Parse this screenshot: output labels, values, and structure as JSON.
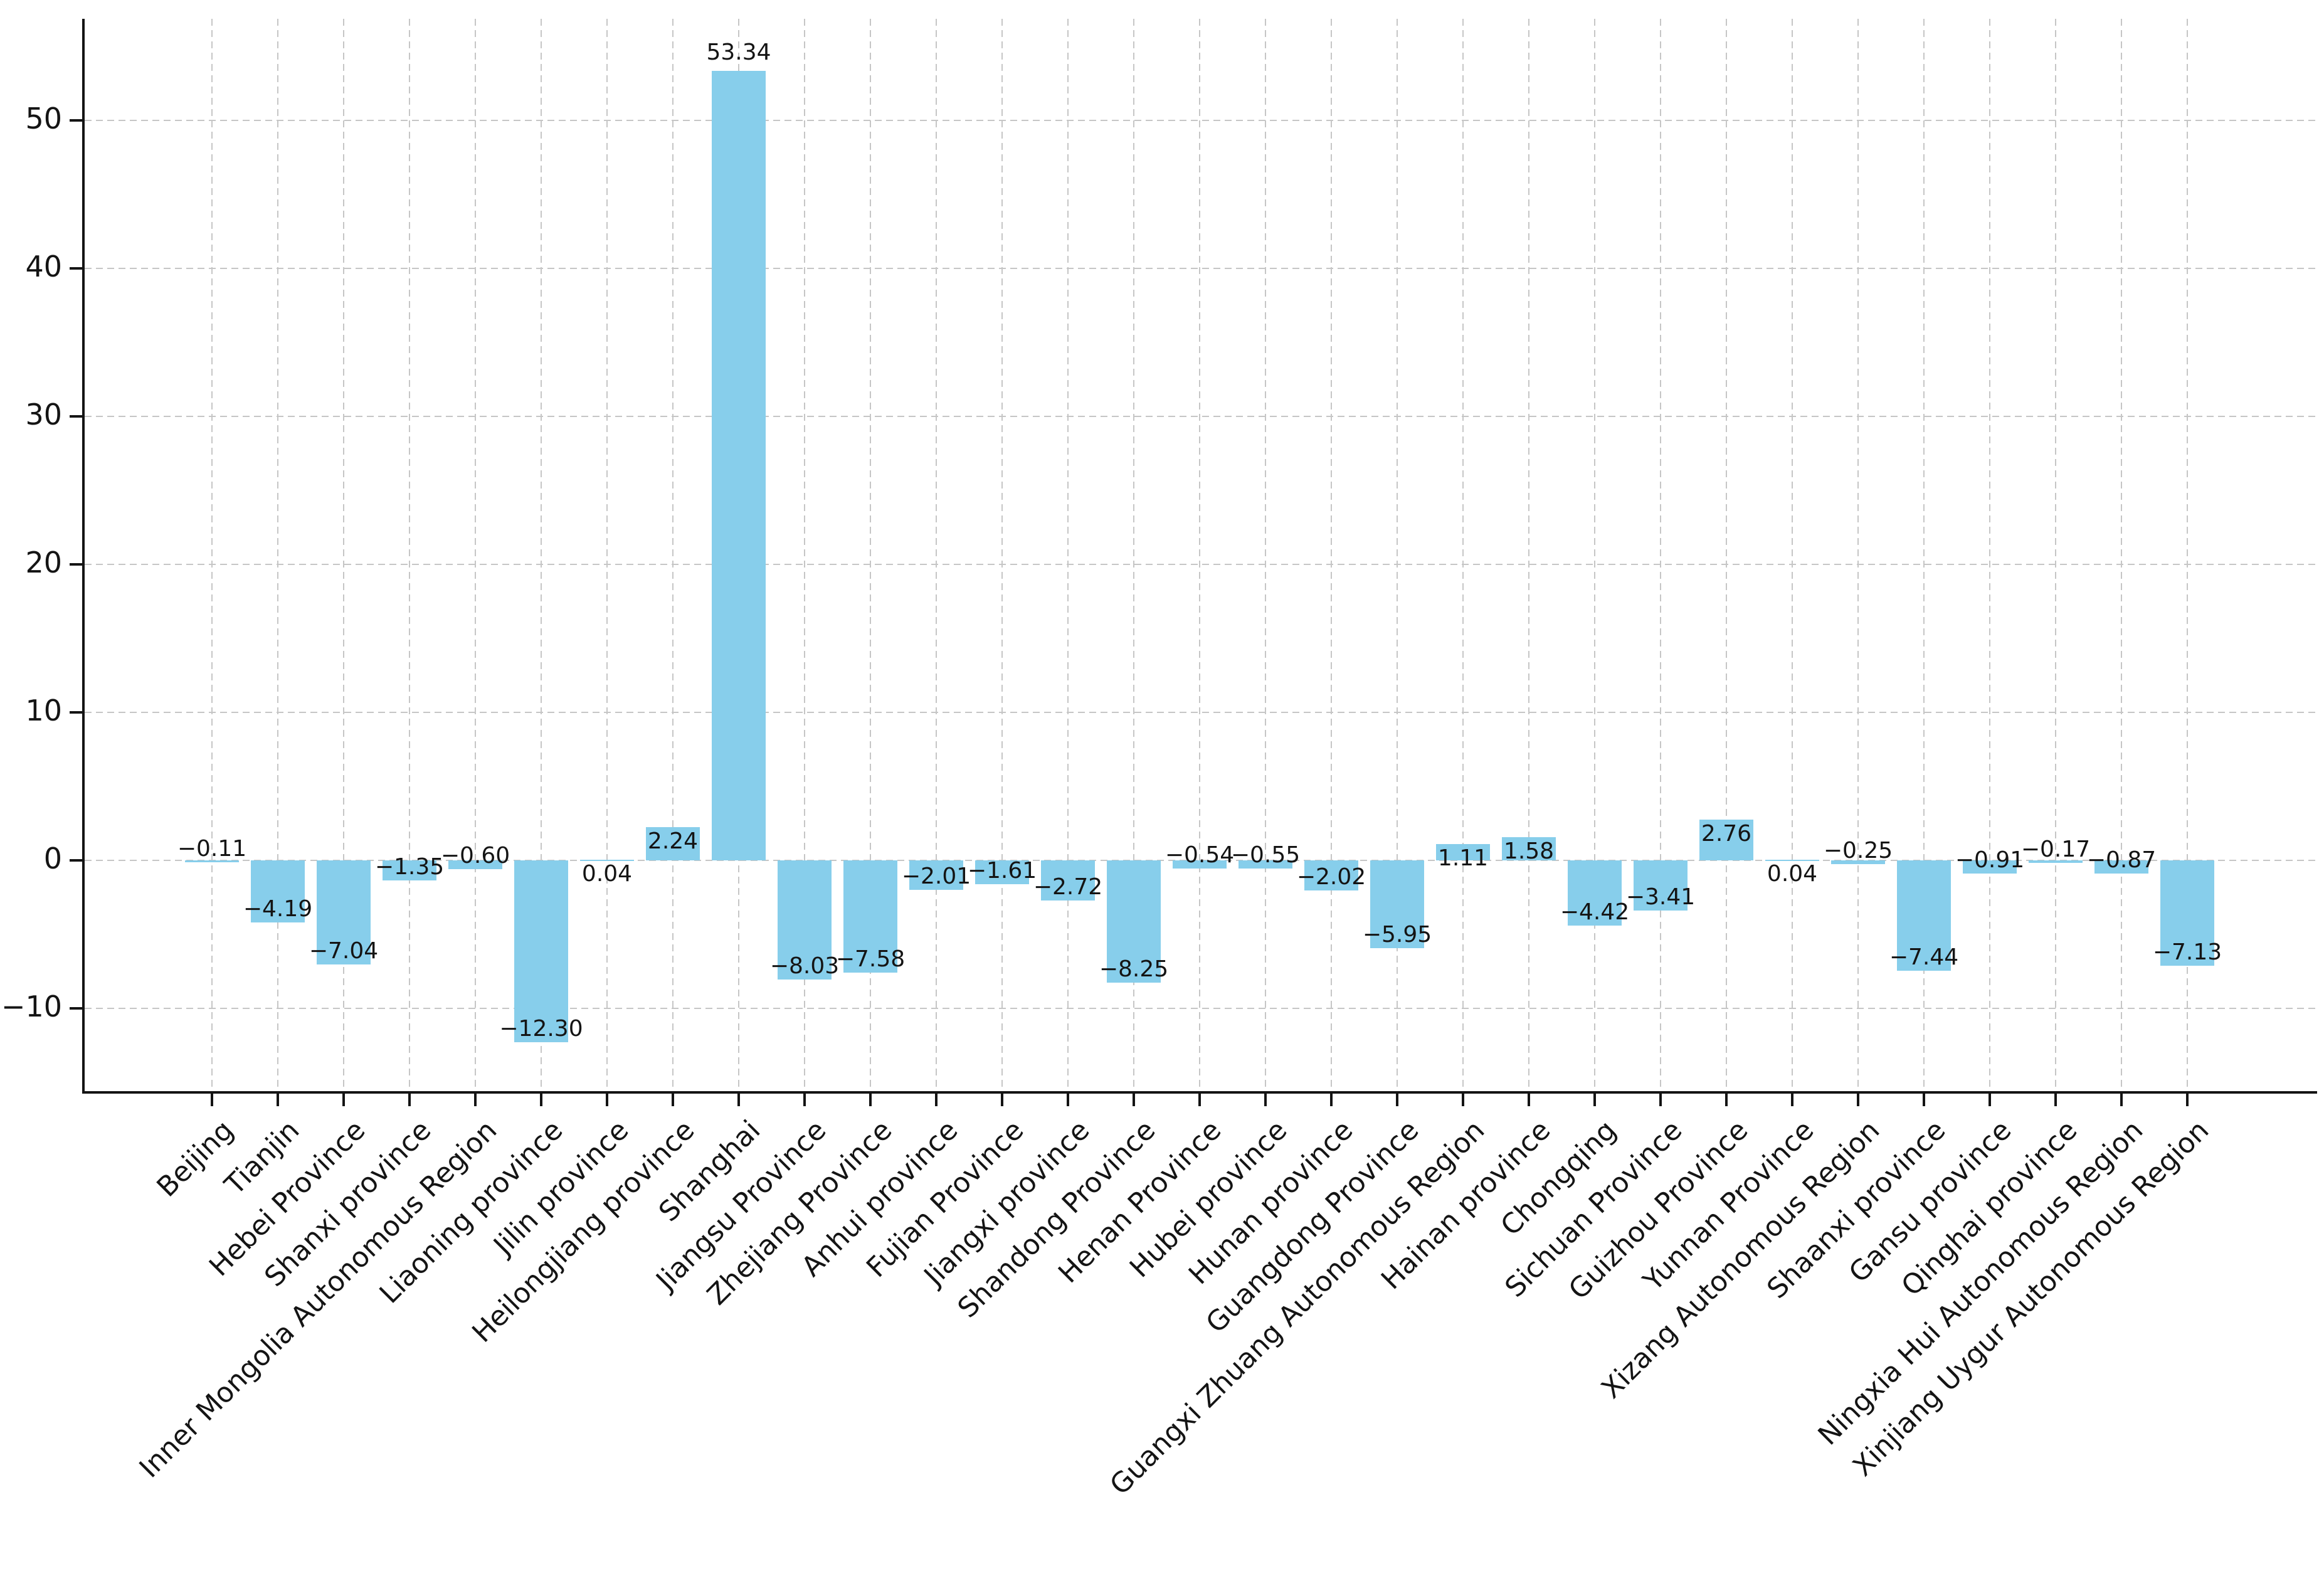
{
  "figure": {
    "background_color": "#ffffff",
    "title": ""
  },
  "chart_data": {
    "type": "bar",
    "title": "",
    "xlabel": "",
    "ylabel": "",
    "categories": [
      "Beijing",
      "Tianjin",
      "Hebei Province",
      "Shanxi province",
      "Inner Mongolia Autonomous Region",
      "Liaoning province",
      "Jilin province",
      "Heilongjiang province",
      "Shanghai",
      "Jiangsu Province",
      "Zhejiang Province",
      "Anhui province",
      "Fujian Province",
      "Jiangxi province",
      "Shandong Province",
      "Henan Province",
      "Hubei province",
      "Hunan province",
      "Guangdong Province",
      "Guangxi Zhuang Autonomous Region",
      "Hainan province",
      "Chongqing",
      "Sichuan Province",
      "Guizhou Province",
      "Yunnan Province",
      "Xizang Autonomous Region",
      "Shaanxi province",
      "Gansu province",
      "Qinghai province",
      "Ningxia Hui Autonomous Region",
      "Xinjiang Uygur Autonomous Region"
    ],
    "values": [
      -0.11,
      -4.19,
      -7.04,
      -1.35,
      -0.6,
      -12.3,
      0.04,
      2.24,
      53.34,
      -8.03,
      -7.58,
      -2.01,
      -1.61,
      -2.72,
      -8.25,
      -0.54,
      -0.55,
      -2.02,
      -5.95,
      1.11,
      1.58,
      -4.42,
      -3.41,
      2.76,
      0.04,
      -0.25,
      -7.44,
      -0.91,
      -0.17,
      -0.87,
      -7.13
    ],
    "bar_value_labels": [
      "−0.11",
      "−4.19",
      "−7.04",
      "−1.35",
      "−0.60",
      "−12.30",
      "0.04",
      "2.24",
      "53.34",
      "−8.03",
      "−7.58",
      "−2.01",
      "−1.61",
      "−2.72",
      "−8.25",
      "−0.54",
      "−0.55",
      "−2.02",
      "−5.95",
      "1.11",
      "1.58",
      "−4.42",
      "−3.41",
      "2.76",
      "0.04",
      "−0.25",
      "−7.44",
      "−0.91",
      "−0.17",
      "−0.87",
      "−7.13"
    ],
    "yticks": [
      -10,
      0,
      10,
      20,
      30,
      40,
      50
    ],
    "ytick_labels": [
      "−10",
      "0",
      "10",
      "20",
      "30",
      "40",
      "50"
    ],
    "ylim": [
      -15.6,
      56.9
    ],
    "grid": true,
    "grid_style": "dashed",
    "grid_color": "#c6c6c6",
    "bar_color": "#87CEEB",
    "axis_color": "#141414",
    "text_color": "#141414",
    "legend": "none",
    "x_tick_label_rotation_deg": 45
  }
}
